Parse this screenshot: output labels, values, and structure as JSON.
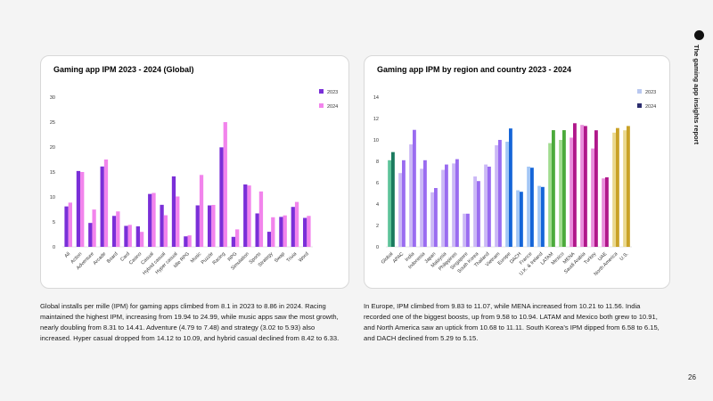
{
  "chart_data": [
    {
      "type": "bar",
      "title": "Gaming app IPM 2023 - 2024 (Global)",
      "categories": [
        "All",
        "Action",
        "Adventure",
        "Arcade",
        "Board",
        "Card",
        "Casino",
        "Casual",
        "Hybrid casual",
        "Hyper casual",
        "Idle RPG",
        "Music",
        "Puzzle",
        "Racing",
        "RPG",
        "Simulation",
        "Sports",
        "Strategy",
        "Swap",
        "Trivia",
        "Word"
      ],
      "series": [
        {
          "name": "2023",
          "color": "#7a2fd8",
          "values": [
            8.1,
            15.2,
            4.79,
            16.1,
            6.2,
            4.2,
            4.1,
            10.6,
            8.42,
            14.12,
            2.1,
            8.31,
            8.3,
            19.94,
            2.0,
            12.5,
            6.7,
            3.02,
            6.0,
            8.0,
            5.8
          ]
        },
        {
          "name": "2024",
          "color": "#f284ec",
          "values": [
            8.86,
            15.0,
            7.48,
            17.5,
            7.1,
            4.4,
            3.0,
            10.8,
            6.33,
            10.09,
            2.3,
            14.41,
            8.4,
            24.99,
            3.5,
            12.3,
            11.1,
            5.93,
            6.3,
            9.0,
            6.2
          ]
        }
      ],
      "ylim": [
        0,
        30
      ],
      "yticks": [
        0,
        5,
        10,
        15,
        20,
        25,
        30
      ],
      "grid": false,
      "legend": "right"
    },
    {
      "type": "bar",
      "title": "Gaming app IPM by region and country  2023 - 2024",
      "categories": [
        "Global",
        "APAC",
        "India",
        "Indonesia",
        "Japan",
        "Malaysia",
        "Philippines",
        "Singapore",
        "South Korea",
        "Thailand",
        "Vietnam",
        "Europe",
        "DACH",
        "France",
        "U.K. & Ireland",
        "LATAM",
        "Mexico",
        "MENA",
        "Saudi Arabia",
        "Turkey",
        "UAE",
        "North America",
        "U.S."
      ],
      "series": [
        {
          "name": "2023",
          "color": "#b9c8f0",
          "values": [
            8.1,
            6.9,
            9.58,
            7.3,
            5.1,
            7.2,
            7.8,
            3.1,
            6.58,
            7.7,
            9.5,
            9.83,
            5.29,
            7.5,
            5.7,
            9.7,
            10.0,
            10.21,
            11.4,
            9.2,
            6.4,
            10.68,
            10.9
          ],
          "colors": [
            "#5ec49a",
            "#cbb8f6",
            "#cbb8f6",
            "#cbb8f6",
            "#cbb8f6",
            "#cbb8f6",
            "#cbb8f6",
            "#cbb8f6",
            "#cbb8f6",
            "#cbb8f6",
            "#cbb8f6",
            "#a3c7f6",
            "#a3c7f6",
            "#a3c7f6",
            "#a3c7f6",
            "#a2dc90",
            "#a2dc90",
            "#e88ddb",
            "#e88ddb",
            "#e88ddb",
            "#e88ddb",
            "#ead88e",
            "#ead88e"
          ]
        },
        {
          "name": "2024",
          "color": "#2b2d6e",
          "values": [
            8.86,
            8.1,
            10.94,
            8.1,
            5.5,
            7.7,
            8.2,
            3.1,
            6.15,
            7.5,
            10.0,
            11.07,
            5.15,
            7.4,
            5.6,
            10.91,
            10.91,
            11.56,
            11.3,
            10.9,
            6.5,
            11.11,
            11.3
          ],
          "colors": [
            "#1a7a5e",
            "#9a6cf0",
            "#9a6cf0",
            "#9a6cf0",
            "#9a6cf0",
            "#9a6cf0",
            "#9a6cf0",
            "#9a6cf0",
            "#9a6cf0",
            "#9a6cf0",
            "#9a6cf0",
            "#1565d8",
            "#1565d8",
            "#1565d8",
            "#1565d8",
            "#4caa3c",
            "#4caa3c",
            "#b0178a",
            "#b0178a",
            "#b0178a",
            "#b0178a",
            "#c9a227",
            "#c9a227"
          ]
        }
      ],
      "ylim": [
        0,
        14
      ],
      "yticks": [
        0,
        2,
        4,
        6,
        8,
        10,
        12,
        14
      ],
      "grid": false,
      "legend": "right"
    }
  ],
  "side_title": "The gaming app insights report",
  "paragraphs": [
    "Global installs per mille (IPM) for gaming apps climbed from 8.1 in 2023 to 8.86 in 2024. Racing maintained the highest IPM, increasing from 19.94 to 24.99, while music apps saw the most growth, nearly doubling from 8.31 to 14.41. Adventure (4.79 to 7.48) and strategy (3.02 to 5.93) also increased. Hyper casual dropped from 14.12 to 10.09, and hybrid casual declined from 8.42 to 6.33.",
    "In Europe, IPM climbed from 9.83 to 11.07, while MENA increased from 10.21 to 11.56. India recorded one of the biggest boosts, up from 9.58 to 10.94. LATAM and Mexico both grew to 10.91, and North America saw an uptick from 10.68 to 11.11. South Korea’s IPM dipped from 6.58 to 6.15, and DACH declined from 5.29 to 5.15."
  ],
  "page_number": "26"
}
